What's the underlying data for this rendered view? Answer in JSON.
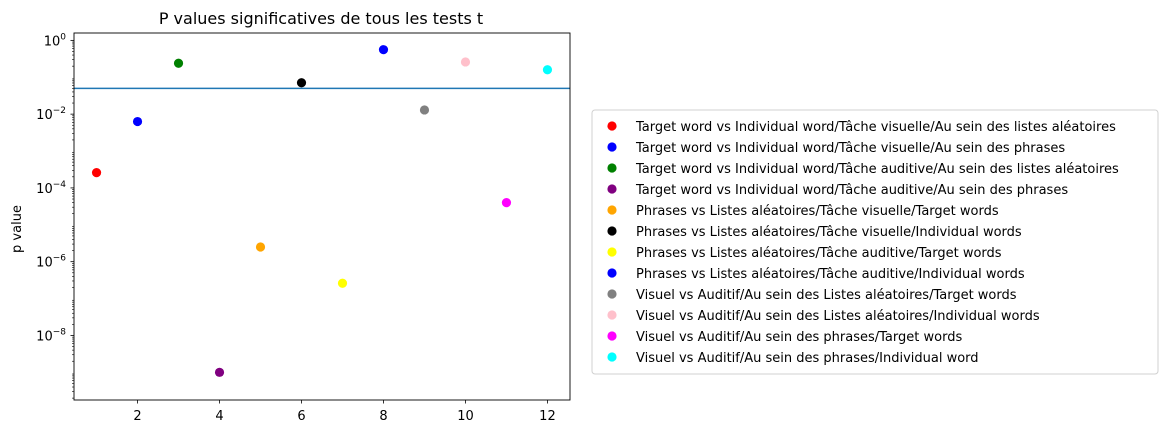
{
  "chart_data": {
    "type": "scatter",
    "title": "P values significatives de tous les tests t",
    "xlabel": "",
    "ylabel": "p value",
    "xlim": [
      0.45,
      12.55
    ],
    "ylim_log10": [
      -9.75,
      0.2
    ],
    "yscale": "log",
    "grid": false,
    "legend_position": "right",
    "x_ticks": [
      2,
      4,
      6,
      8,
      10,
      12
    ],
    "y_ticks": [
      {
        "exp": 0,
        "label": "10",
        "sup": "0"
      },
      {
        "exp": -2,
        "label": "10",
        "sup": "−2"
      },
      {
        "exp": -4,
        "label": "10",
        "sup": "−4"
      },
      {
        "exp": -6,
        "label": "10",
        "sup": "−6"
      },
      {
        "exp": -8,
        "label": "10",
        "sup": "−8"
      }
    ],
    "threshold": {
      "y": 0.05,
      "color": "#1f77b4"
    },
    "series": [
      {
        "name": "Target word vs Individual word/Tâche visuelle/Au sein des listes aléatoires",
        "x": 1,
        "y": 0.00026,
        "color": "#ff0000"
      },
      {
        "name": "Target word vs Individual word/Tâche visuelle/Au sein des phrases",
        "x": 2,
        "y": 0.0063,
        "color": "#0000ff"
      },
      {
        "name": "Target word vs Individual word/Tâche auditive/Au sein des listes aléatoires",
        "x": 3,
        "y": 0.24,
        "color": "#008000"
      },
      {
        "name": "Target word vs Individual word/Tâche auditive/Au sein des phrases",
        "x": 4,
        "y": 1e-09,
        "color": "#800080"
      },
      {
        "name": "Phrases vs Listes aléatoires/Tâche visuelle/Target words",
        "x": 5,
        "y": 2.5e-06,
        "color": "#ffa500"
      },
      {
        "name": "Phrases vs Listes aléatoires/Tâche visuelle/Individual words",
        "x": 6,
        "y": 0.071,
        "color": "#000000"
      },
      {
        "name": "Phrases vs Listes aléatoires/Tâche auditive/Target words",
        "x": 7,
        "y": 2.6e-07,
        "color": "#ffff00"
      },
      {
        "name": "Phrases vs Listes aléatoires/Tâche auditive/Individual words",
        "x": 8,
        "y": 0.56,
        "color": "#0000ff"
      },
      {
        "name": "Visuel vs Auditif/Au sein des Listes aléatoires/Target words",
        "x": 9,
        "y": 0.013,
        "color": "#808080"
      },
      {
        "name": "Visuel vs Auditif/Au sein des Listes aléatoires/Individual words",
        "x": 10,
        "y": 0.26,
        "color": "#ffc0cb"
      },
      {
        "name": "Visuel vs Auditif/Au sein des phrases/Target words",
        "x": 11,
        "y": 4e-05,
        "color": "#ff00ff"
      },
      {
        "name": "Visuel vs Auditif/Au sein des phrases/Individual word",
        "x": 12,
        "y": 0.16,
        "color": "#00ffff"
      }
    ]
  }
}
